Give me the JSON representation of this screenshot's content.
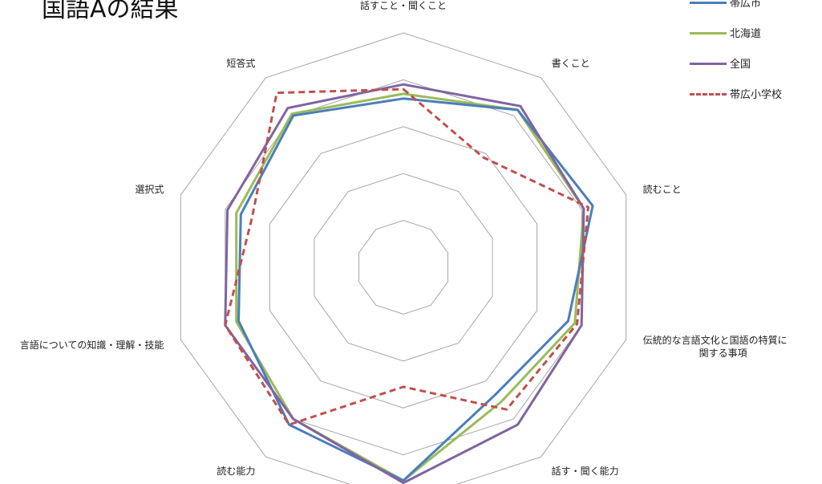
{
  "title": "国語Aの結果",
  "chart_data": {
    "type": "radar",
    "axes": [
      "話すこと・聞くこと",
      "書くこと",
      "読むこと",
      "伝統的な言語文化と国語の特質に関する事項",
      "話す・聞く能力",
      "",
      "読む能力",
      "言語についての知識・理解・技能",
      "選択式",
      "短答式"
    ],
    "axis_label_lines": [
      [
        "話すこと・聞くこと"
      ],
      [
        "書くこと"
      ],
      [
        "読むこと"
      ],
      [
        "伝統的な言語文化と国語の特質に",
        "関する事項"
      ],
      [
        "話す・聞く能力"
      ],
      [
        ""
      ],
      [
        "読む能力"
      ],
      [
        "言語についての知識・理解・技能"
      ],
      [
        "選択式"
      ],
      [
        "短答式"
      ]
    ],
    "rings": 5,
    "series": [
      {
        "name": "帯広市",
        "color": "#4a7ebb",
        "dash": "",
        "values": [
          0.72,
          0.83,
          0.85,
          0.74,
          0.67,
          0.91,
          0.83,
          0.74,
          0.73,
          0.8
        ]
      },
      {
        "name": "北海道",
        "color": "#9bbb59",
        "dash": "",
        "values": [
          0.74,
          0.83,
          0.81,
          0.77,
          0.71,
          0.91,
          0.8,
          0.75,
          0.75,
          0.81
        ]
      },
      {
        "name": "全国",
        "color": "#8064a2",
        "dash": "",
        "values": [
          0.78,
          0.85,
          0.81,
          0.8,
          0.83,
          0.92,
          0.8,
          0.8,
          0.79,
          0.84
        ]
      },
      {
        "name": "帯広小学校",
        "color": "#c0504d",
        "dash": "8,5",
        "values": [
          0.76,
          0.58,
          0.83,
          0.78,
          0.75,
          0.51,
          0.83,
          0.8,
          0.68,
          0.92
        ]
      }
    ]
  }
}
